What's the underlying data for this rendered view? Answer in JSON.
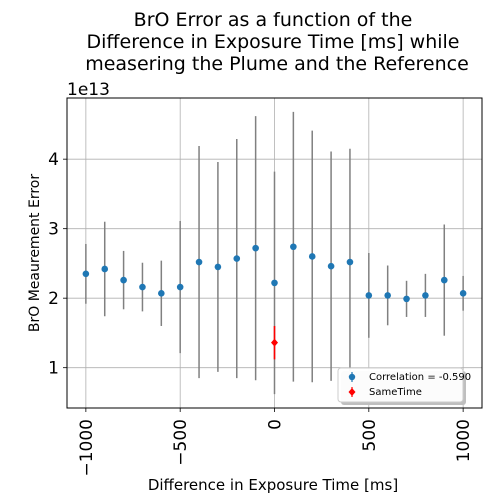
{
  "chart_data": {
    "type": "scatter",
    "title": [
      "BrO Error as a function of the",
      "Difference in Exposure Time [ms] while",
      "measering the Plume and the Reference"
    ],
    "xlabel": "Difference in Exposure Time [ms]",
    "ylabel": "BrO Meaurement Error",
    "y_offset_label": "1e13",
    "xlim": [
      -1100,
      1100
    ],
    "ylim": [
      0.42,
      4.88
    ],
    "x_ticks": [
      -1000,
      -500,
      0,
      500,
      1000
    ],
    "x_tick_labels": [
      "−1000",
      "−500",
      "0",
      "500",
      "1000"
    ],
    "y_ticks": [
      1,
      2,
      3,
      4
    ],
    "y_tick_labels": [
      "1",
      "2",
      "3",
      "4"
    ],
    "grid": true,
    "legend_position": "lower-right",
    "series": [
      {
        "name": "Correlation = -0.590",
        "color": "#1f77b4",
        "error_color": "#808080",
        "x": [
          -1000,
          -900,
          -800,
          -700,
          -600,
          -500,
          -400,
          -300,
          -200,
          -100,
          0,
          100,
          200,
          300,
          400,
          500,
          600,
          700,
          800,
          900,
          1000
        ],
        "y": [
          2.35,
          2.42,
          2.26,
          2.16,
          2.07,
          2.16,
          2.52,
          2.45,
          2.57,
          2.72,
          2.22,
          2.74,
          2.6,
          2.46,
          2.52,
          2.04,
          2.04,
          1.99,
          2.04,
          2.26,
          2.07
        ],
        "y_err": [
          0.43,
          0.68,
          0.42,
          0.35,
          0.47,
          0.95,
          1.67,
          1.51,
          1.72,
          1.9,
          1.6,
          1.94,
          1.81,
          1.65,
          1.63,
          0.61,
          0.43,
          0.26,
          0.31,
          0.8,
          0.25
        ]
      },
      {
        "name": "SameTime",
        "color": "#ff0000",
        "error_color": "#ff0000",
        "x": [
          0
        ],
        "y": [
          1.36
        ],
        "y_err": [
          0.24
        ]
      }
    ]
  }
}
